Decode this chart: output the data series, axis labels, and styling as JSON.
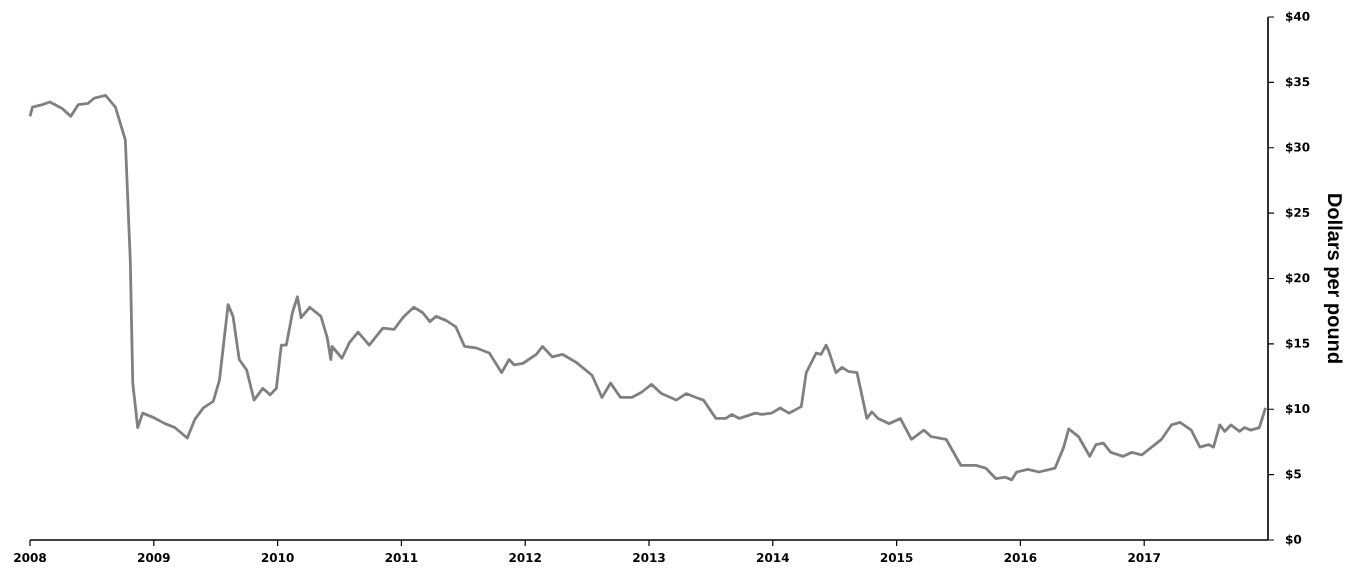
{
  "chart_data": {
    "type": "line",
    "ylabel": "Dollars per pound",
    "color": "#808080",
    "line_style": "solid",
    "x": [
      2008.0,
      2008.02,
      2008.1,
      2008.16,
      2008.26,
      2008.33,
      2008.39,
      2008.47,
      2008.52,
      2008.61,
      2008.69,
      2008.77,
      2008.81,
      2008.83,
      2008.87,
      2008.91,
      2008.99,
      2009.09,
      2009.17,
      2009.27,
      2009.33,
      2009.4,
      2009.48,
      2009.53,
      2009.6,
      2009.64,
      2009.69,
      2009.75,
      2009.81,
      2009.88,
      2009.94,
      2009.99,
      2010.03,
      2010.07,
      2010.12,
      2010.16,
      2010.19,
      2010.26,
      2010.35,
      2010.4,
      2010.43,
      2010.44,
      2010.52,
      2010.58,
      2010.65,
      2010.74,
      2010.85,
      2010.94,
      2011.02,
      2011.1,
      2011.17,
      2011.23,
      2011.28,
      2011.36,
      2011.44,
      2011.51,
      2011.6,
      2011.71,
      2011.81,
      2011.87,
      2011.91,
      2011.98,
      2012.09,
      2012.14,
      2012.22,
      2012.3,
      2012.41,
      2012.54,
      2012.62,
      2012.69,
      2012.77,
      2012.86,
      2012.94,
      2013.02,
      2013.1,
      2013.22,
      2013.3,
      2013.38,
      2013.44,
      2013.54,
      2013.62,
      2013.67,
      2013.73,
      2013.86,
      2013.91,
      2013.99,
      2014.06,
      2014.13,
      2014.23,
      2014.27,
      2014.35,
      2014.39,
      2014.43,
      2014.45,
      2014.51,
      2014.56,
      2014.61,
      2014.68,
      2014.76,
      2014.8,
      2014.85,
      2014.94,
      2015.03,
      2015.12,
      2015.22,
      2015.28,
      2015.4,
      2015.52,
      2015.64,
      2015.72,
      2015.8,
      2015.88,
      2015.93,
      2015.97,
      2016.06,
      2016.15,
      2016.28,
      2016.35,
      2016.39,
      2016.47,
      2016.56,
      2016.61,
      2016.67,
      2016.73,
      2016.83,
      2016.9,
      2016.98,
      2017.06,
      2017.14,
      2017.22,
      2017.29,
      2017.38,
      2017.45,
      2017.52,
      2017.56,
      2017.61,
      2017.65,
      2017.7,
      2017.77,
      2017.81,
      2017.86,
      2017.93,
      2017.98
    ],
    "values": [
      32.4,
      33.1,
      33.3,
      33.5,
      33.0,
      32.4,
      33.3,
      33.4,
      33.8,
      34.0,
      33.1,
      30.6,
      21.4,
      12.0,
      8.6,
      9.7,
      9.4,
      8.9,
      8.6,
      7.8,
      9.2,
      10.1,
      10.6,
      12.2,
      18.0,
      17.1,
      13.8,
      13.0,
      10.7,
      11.6,
      11.1,
      11.6,
      14.9,
      14.9,
      17.4,
      18.6,
      17.0,
      17.8,
      17.1,
      15.5,
      13.8,
      14.8,
      13.9,
      15.1,
      15.9,
      14.9,
      16.2,
      16.1,
      17.1,
      17.8,
      17.4,
      16.7,
      17.1,
      16.8,
      16.3,
      14.8,
      14.7,
      14.3,
      12.8,
      13.8,
      13.4,
      13.5,
      14.2,
      14.8,
      14.0,
      14.2,
      13.6,
      12.6,
      10.9,
      12.0,
      10.9,
      10.9,
      11.3,
      11.9,
      11.2,
      10.7,
      11.2,
      10.9,
      10.7,
      9.3,
      9.3,
      9.6,
      9.3,
      9.7,
      9.6,
      9.7,
      10.1,
      9.7,
      10.2,
      12.8,
      14.3,
      14.2,
      14.9,
      14.5,
      12.8,
      13.2,
      12.9,
      12.8,
      9.3,
      9.8,
      9.3,
      8.9,
      9.3,
      7.7,
      8.4,
      7.9,
      7.7,
      5.7,
      5.7,
      5.5,
      4.7,
      4.8,
      4.6,
      5.2,
      5.4,
      5.2,
      5.5,
      7.1,
      8.5,
      7.9,
      6.4,
      7.3,
      7.4,
      6.7,
      6.4,
      6.7,
      6.5,
      7.1,
      7.7,
      8.8,
      9.0,
      8.4,
      7.1,
      7.3,
      7.1,
      8.8,
      8.3,
      8.8,
      8.3,
      8.6,
      8.4,
      8.6,
      10.1
    ],
    "xlim": [
      2008,
      2018
    ],
    "xticks": [
      2008,
      2009,
      2010,
      2011,
      2012,
      2013,
      2014,
      2015,
      2016,
      2017
    ],
    "ylim": [
      0,
      40
    ],
    "yticks": [
      {
        "value": 0,
        "label": "$0"
      },
      {
        "value": 5,
        "label": "$5"
      },
      {
        "value": 10,
        "label": "$10"
      },
      {
        "value": 15,
        "label": "$15"
      },
      {
        "value": 20,
        "label": "$20"
      },
      {
        "value": 25,
        "label": "$25"
      },
      {
        "value": 30,
        "label": "$30"
      },
      {
        "value": 35,
        "label": "$35"
      },
      {
        "value": 40,
        "label": "$40"
      }
    ]
  }
}
